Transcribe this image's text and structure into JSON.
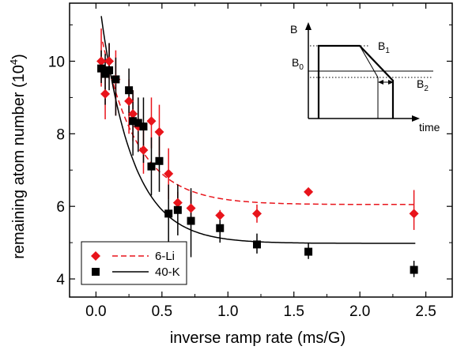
{
  "chart_data": {
    "type": "scatter",
    "xlabel": "inverse ramp rate (ms/G)",
    "ylabel": "remaining atom number  (10",
    "ylabel_exponent": "4",
    "ylabel_suffix": ")",
    "xlim": [
      -0.2,
      2.7
    ],
    "ylim": [
      3.5,
      11.6
    ],
    "xticks": [
      0.0,
      0.5,
      1.0,
      1.5,
      2.0,
      2.5
    ],
    "xtick_labels": [
      "0.0",
      "0.5",
      "1.0",
      "1.5",
      "2.0",
      "2.5"
    ],
    "yticks": [
      4,
      6,
      8,
      10
    ],
    "ytick_labels": [
      "4",
      "6",
      "8",
      "10"
    ],
    "legend_position": "bottom-left",
    "series": [
      {
        "name": "6-Li",
        "color": "#e8141b",
        "marker": "diamond",
        "points": [
          {
            "x": 0.04,
            "y": 10.0,
            "lo": 9.3,
            "hi": 10.9
          },
          {
            "x": 0.07,
            "y": 9.1,
            "lo": 8.4,
            "hi": 9.9
          },
          {
            "x": 0.1,
            "y": 10.0,
            "lo": 9.5,
            "hi": 10.5
          },
          {
            "x": 0.15,
            "y": 9.5,
            "lo": 8.5,
            "hi": 10.3
          },
          {
            "x": 0.25,
            "y": 8.9,
            "lo": 8.0,
            "hi": 9.5
          },
          {
            "x": 0.28,
            "y": 8.55,
            "lo": 7.8,
            "hi": 9.2
          },
          {
            "x": 0.32,
            "y": 8.2,
            "lo": 7.6,
            "hi": 8.8
          },
          {
            "x": 0.36,
            "y": 7.55,
            "lo": 6.9,
            "hi": 8.3
          },
          {
            "x": 0.42,
            "y": 8.35,
            "lo": 7.6,
            "hi": 9.0
          },
          {
            "x": 0.48,
            "y": 8.05,
            "lo": 7.4,
            "hi": 8.8
          },
          {
            "x": 0.55,
            "y": 6.9,
            "lo": 6.2,
            "hi": 7.6
          },
          {
            "x": 0.62,
            "y": 6.1,
            "lo": 5.8,
            "hi": 6.4
          },
          {
            "x": 0.72,
            "y": 5.95,
            "lo": 5.55,
            "hi": 6.4
          },
          {
            "x": 0.94,
            "y": 5.75,
            "lo": 5.6,
            "hi": 5.9
          },
          {
            "x": 1.22,
            "y": 5.8,
            "lo": 5.55,
            "hi": 6.05
          },
          {
            "x": 1.61,
            "y": 6.4,
            "lo": 6.3,
            "hi": 6.5
          },
          {
            "x": 2.41,
            "y": 5.8,
            "lo": 5.35,
            "hi": 6.45
          }
        ],
        "fit": {
          "style": "dashed",
          "A": 5.4,
          "tau": 0.27,
          "C": 6.05,
          "x0": 0.05,
          "x1": 2.42
        }
      },
      {
        "name": "40-K",
        "color": "#000000",
        "marker": "square",
        "points": [
          {
            "x": 0.04,
            "y": 9.8,
            "lo": 9.4,
            "hi": 10.3
          },
          {
            "x": 0.07,
            "y": 9.65,
            "lo": 8.8,
            "hi": 10.2
          },
          {
            "x": 0.1,
            "y": 9.75,
            "lo": 9.2,
            "hi": 10.5
          },
          {
            "x": 0.15,
            "y": 9.5,
            "lo": 8.5,
            "hi": 10.1
          },
          {
            "x": 0.25,
            "y": 9.2,
            "lo": 8.5,
            "hi": 9.8
          },
          {
            "x": 0.28,
            "y": 8.35,
            "lo": 7.4,
            "hi": 9.2
          },
          {
            "x": 0.32,
            "y": 8.3,
            "lo": 7.5,
            "hi": 9.0
          },
          {
            "x": 0.36,
            "y": 8.2,
            "lo": 7.2,
            "hi": 9.0
          },
          {
            "x": 0.42,
            "y": 7.1,
            "lo": 6.3,
            "hi": 7.9
          },
          {
            "x": 0.48,
            "y": 7.25,
            "lo": 6.4,
            "hi": 8.0
          },
          {
            "x": 0.55,
            "y": 5.8,
            "lo": 4.95,
            "hi": 6.6
          },
          {
            "x": 0.62,
            "y": 5.9,
            "lo": 5.2,
            "hi": 6.6
          },
          {
            "x": 0.72,
            "y": 5.6,
            "lo": 4.6,
            "hi": 6.5
          },
          {
            "x": 0.94,
            "y": 5.4,
            "lo": 5.0,
            "hi": 5.85
          },
          {
            "x": 1.22,
            "y": 4.95,
            "lo": 4.7,
            "hi": 5.25
          },
          {
            "x": 1.61,
            "y": 4.75,
            "lo": 4.55,
            "hi": 5.0
          },
          {
            "x": 2.41,
            "y": 4.25,
            "lo": 4.05,
            "hi": 4.5
          }
        ],
        "fit": {
          "style": "solid",
          "A": 7.4,
          "tau": 0.24,
          "C": 4.98,
          "x0": 0.04,
          "x1": 2.42
        }
      }
    ]
  },
  "inset": {
    "y_axis_label": "B",
    "x_axis_label": "time",
    "label_b1": "B",
    "sub_b1": "1",
    "label_b0": "B",
    "sub_b0": "0",
    "label_b2": "B",
    "sub_b2": "2"
  }
}
